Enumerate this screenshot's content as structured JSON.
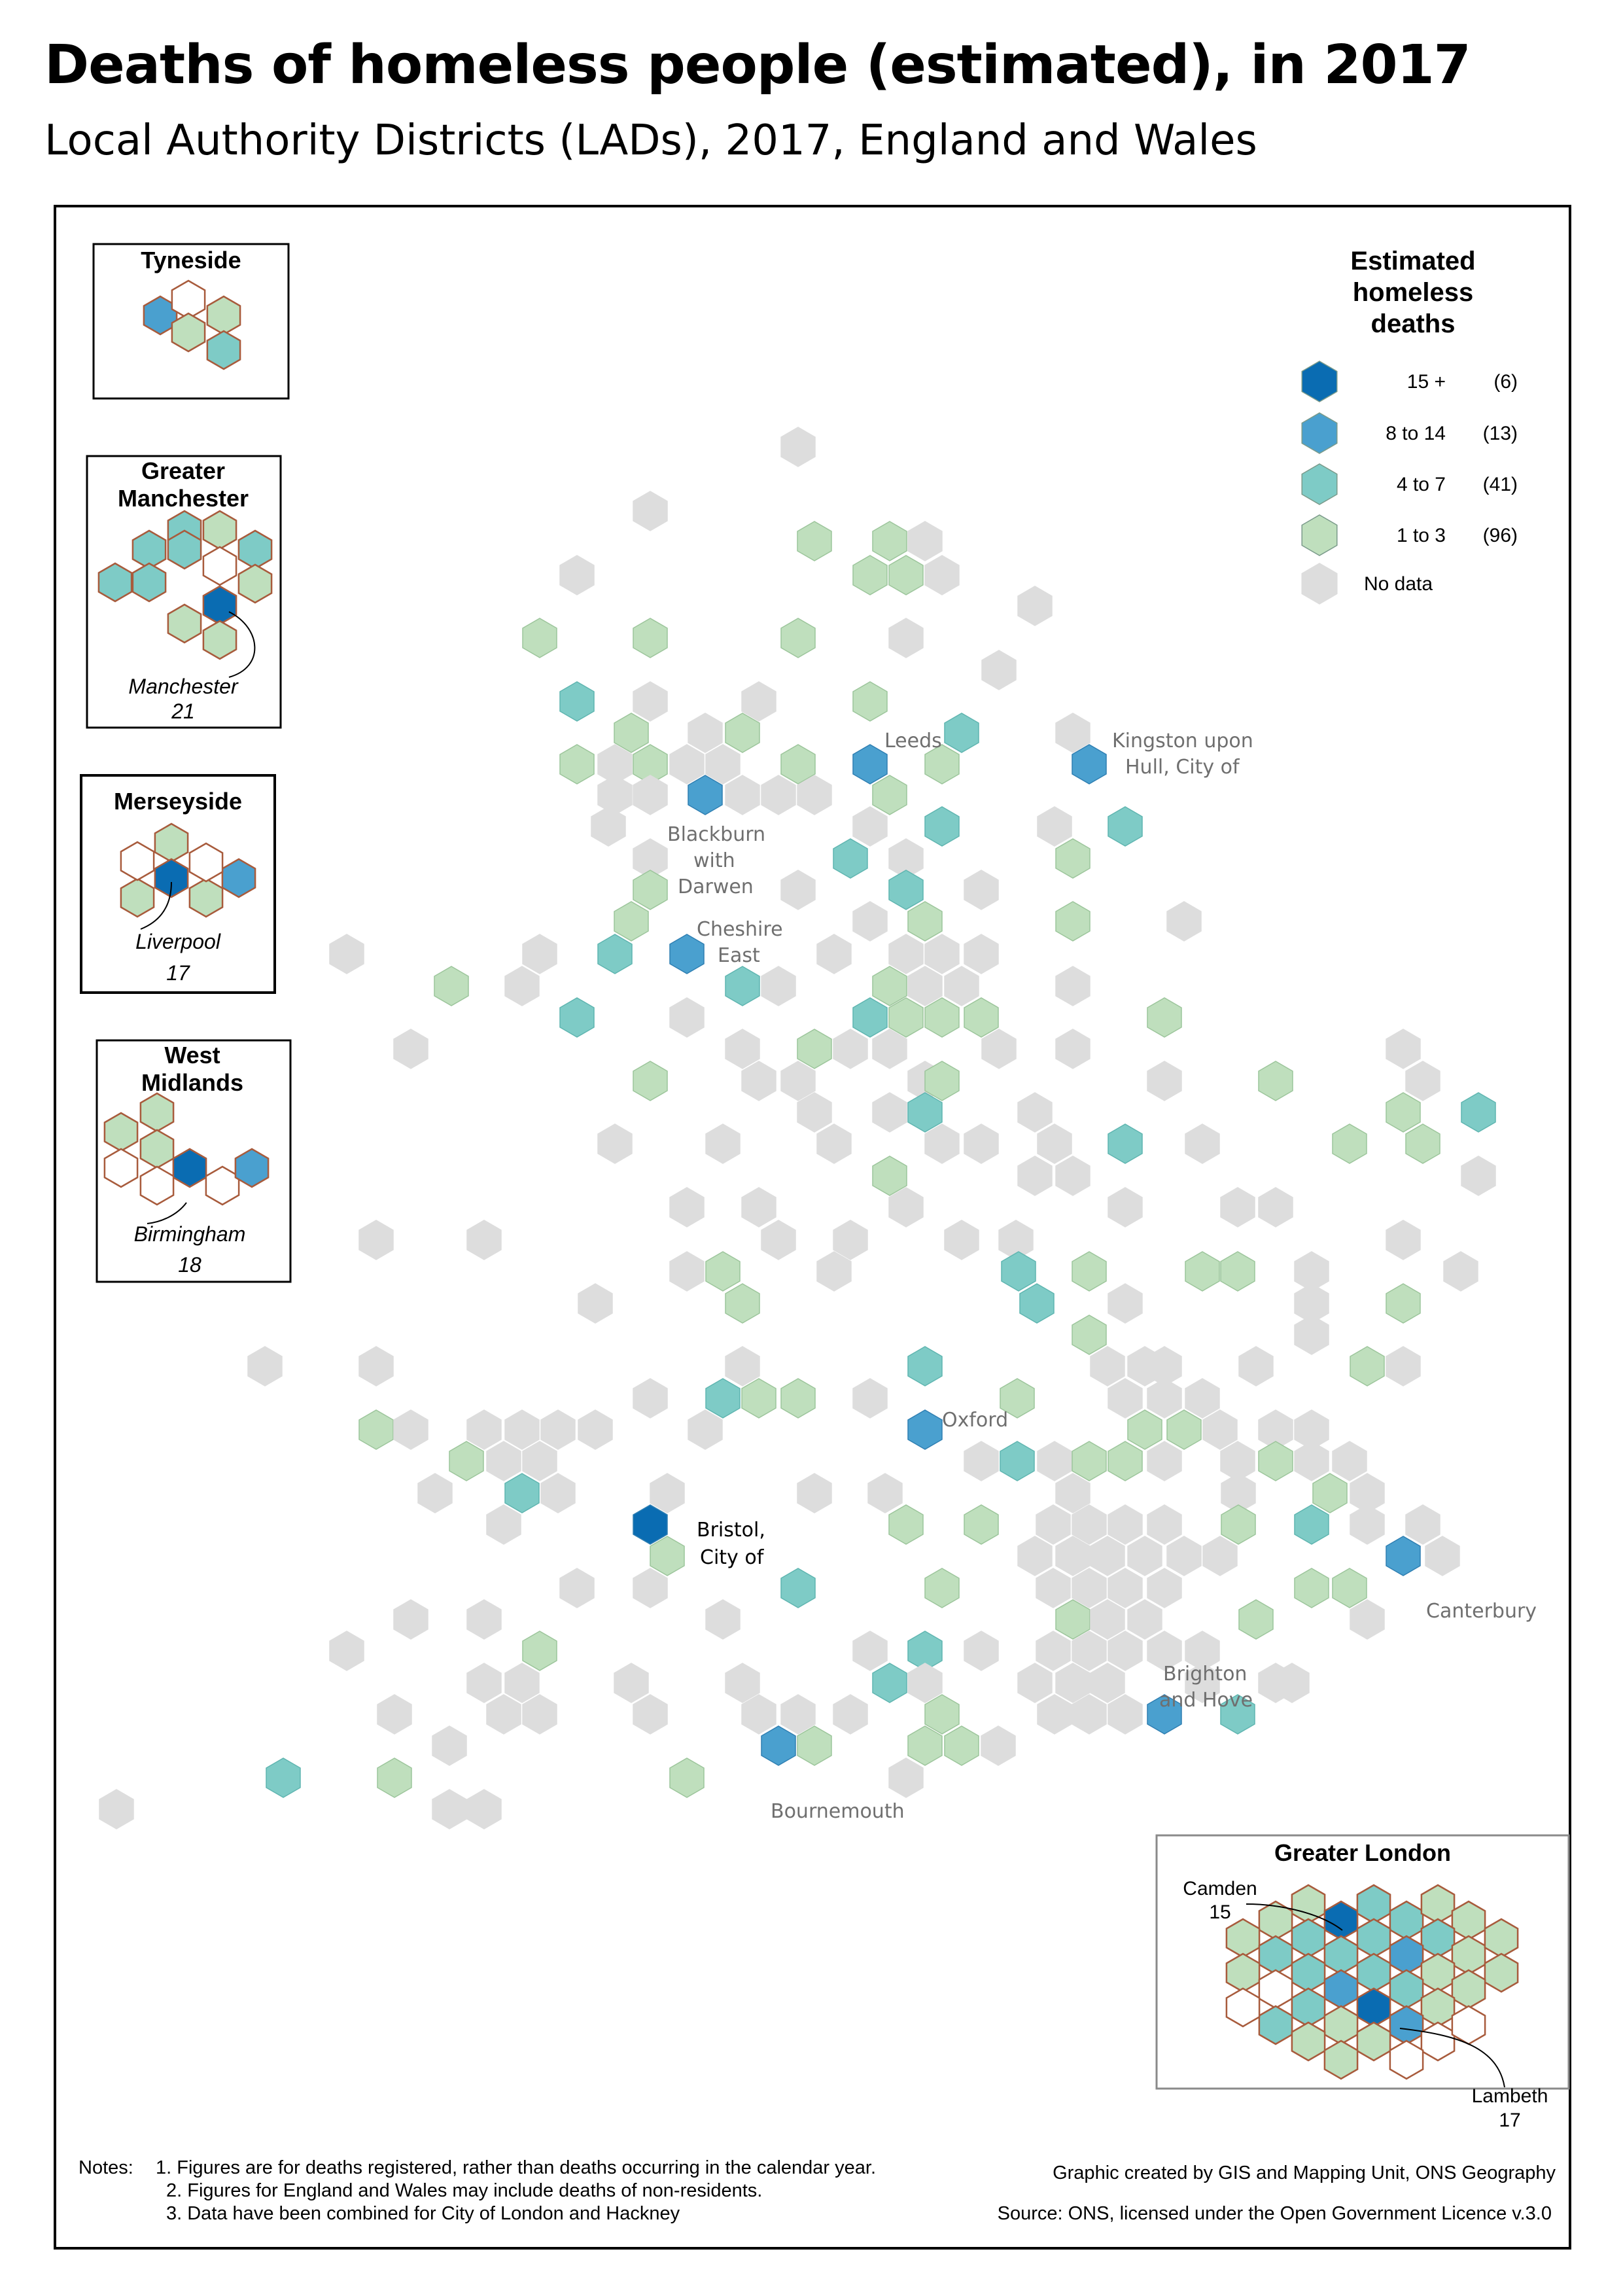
{
  "title": "Deaths of homeless people (estimated), in 2017",
  "subtitle": "Local Authority Districts (LADs), 2017, England and Wales",
  "colors": {
    "c15": "#0a6cb2",
    "c8": "#4aa0cf",
    "c4": "#7ecbc6",
    "c1": "#bfdfbd",
    "nodata": "#dddddd",
    "inset_outline": "#a85b3c"
  },
  "legend": {
    "title_line1": "Estimated",
    "title_line2": "homeless",
    "title_line3": "deaths",
    "classes": [
      {
        "label": "15 +",
        "count": "(6)",
        "color_key": "c15"
      },
      {
        "label": "8 to 14",
        "count": "(13)",
        "color_key": "c8"
      },
      {
        "label": "4 to 7",
        "count": "(41)",
        "color_key": "c4"
      },
      {
        "label": "1 to 3",
        "count": "(96)",
        "color_key": "c1"
      },
      {
        "label": "No data",
        "count": "",
        "color_key": "nodata"
      }
    ]
  },
  "map_labels": {
    "leeds": "Leeds",
    "hull_1": "Kingston upon",
    "hull_2": "Hull, City of",
    "blackburn_1": "Blackburn",
    "blackburn_2": "with",
    "blackburn_3": "Darwen",
    "cheshire_1": "Cheshire",
    "cheshire_2": "East",
    "oxford": "Oxford",
    "bristol_1": "Bristol,",
    "bristol_2": "City of",
    "canterbury": "Canterbury",
    "brighton_1": "Brighton",
    "brighton_2": "and Hove",
    "bournemouth": "Bournemouth"
  },
  "insets": {
    "tyneside": {
      "title": "Tyneside"
    },
    "manchester": {
      "title_1": "Greater",
      "title_2": "Manchester",
      "city": "Manchester",
      "value": "21"
    },
    "merseyside": {
      "title": "Merseyside",
      "city": "Liverpool",
      "value": "17"
    },
    "westmid": {
      "title_1": "West",
      "title_2": "Midlands",
      "city": "Birmingham",
      "value": "18"
    },
    "london": {
      "title": "Greater London",
      "camden": "Camden",
      "camden_value": "15",
      "lambeth": "Lambeth",
      "lambeth_value": "17"
    }
  },
  "notes": {
    "label": "Notes:",
    "n1": "1. Figures are for deaths registered, rather than deaths occurring in the calendar year.",
    "n2": "2. Figures for England and Wales may include deaths of non-residents.",
    "n3": "3. Data have been combined for City of London and Hackney"
  },
  "credit": "Graphic created by GIS and Mapping Unit, ONS Geography",
  "source": "Source: ONS, licensed under the Open Government Licence v.3.0"
}
